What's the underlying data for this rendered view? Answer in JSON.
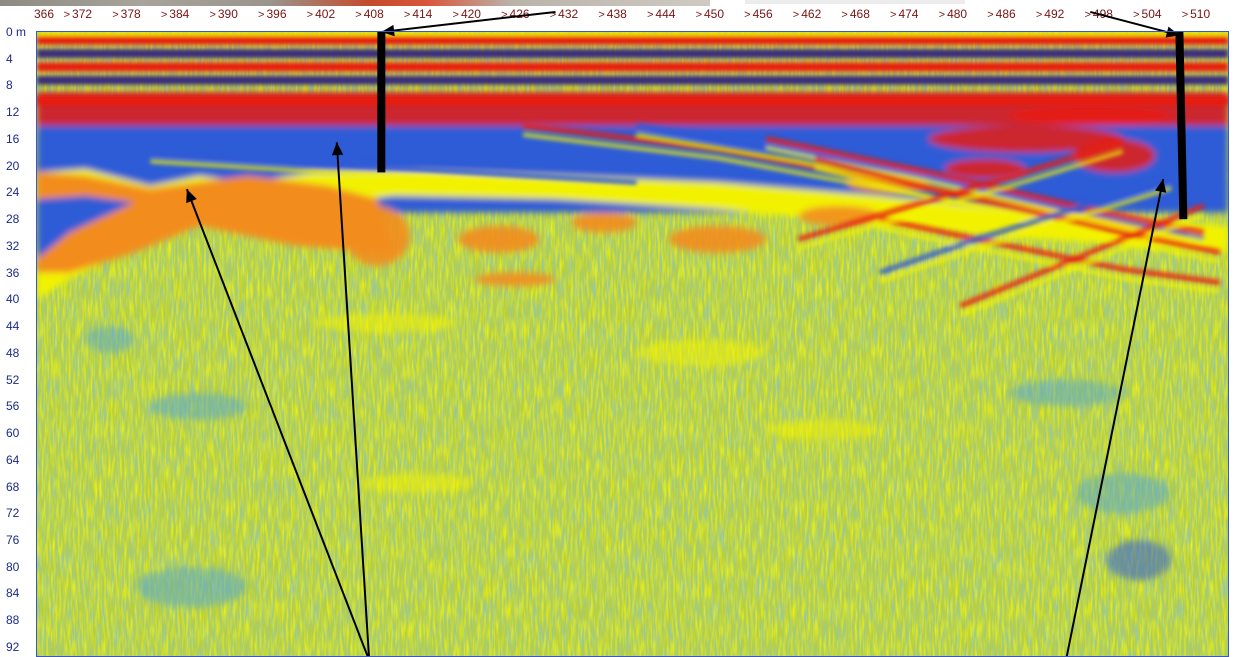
{
  "chart_data": {
    "type": "heatmap",
    "description_of_axes": "horizontal trace distance (top) and depth (left)",
    "x_ticks": [
      "366",
      "372",
      "378",
      "384",
      "390",
      "396",
      "402",
      "408",
      "414",
      "420",
      "426",
      "432",
      "438",
      "444",
      "450",
      "456",
      "462",
      "468",
      "474",
      "480",
      "486",
      "492",
      "498",
      "504",
      "510"
    ],
    "x_tick_prefix": ">",
    "x_range": [
      366,
      513
    ],
    "y_ticks": [
      "0 m",
      "4",
      "8",
      "12",
      "16",
      "20",
      "24",
      "28",
      "32",
      "36",
      "40",
      "44",
      "48",
      "52",
      "56",
      "60",
      "64",
      "68",
      "72",
      "76",
      "80",
      "84",
      "88",
      "92"
    ],
    "y_range": [
      0,
      92
    ],
    "colormap": [
      "#3a2a7a",
      "#2f5bd6",
      "#5aa8c8",
      "#c8d84a",
      "#f2f200",
      "#f28c1e",
      "#e81e10"
    ],
    "reflector_bands_depth": [
      {
        "depth": 1,
        "color": "#e81e10"
      },
      {
        "depth": 3,
        "color": "#3a2a7a"
      },
      {
        "depth": 5,
        "color": "#e81e10"
      },
      {
        "depth": 7,
        "color": "#3a2a7a"
      },
      {
        "depth": 10,
        "color": "#e81e10"
      }
    ],
    "markers": [
      {
        "label": "",
        "x": 408.5,
        "y_top": 0,
        "y_bottom": 21
      },
      {
        "label": "",
        "x": 507,
        "y_top": 0,
        "y_bottom": 28
      }
    ],
    "annotation_arrows": [
      {
        "from": [
          407,
          94
        ],
        "to": [
          384.5,
          23.5
        ]
      },
      {
        "from": [
          407,
          94
        ],
        "to": [
          403,
          16.5
        ]
      },
      {
        "from": [
          493,
          94
        ],
        "to": [
          505,
          22
        ]
      },
      {
        "from": [
          430,
          -3
        ],
        "to": [
          408.5,
          0
        ]
      },
      {
        "from": [
          496,
          -3
        ],
        "to": [
          507,
          0.5
        ]
      }
    ]
  }
}
